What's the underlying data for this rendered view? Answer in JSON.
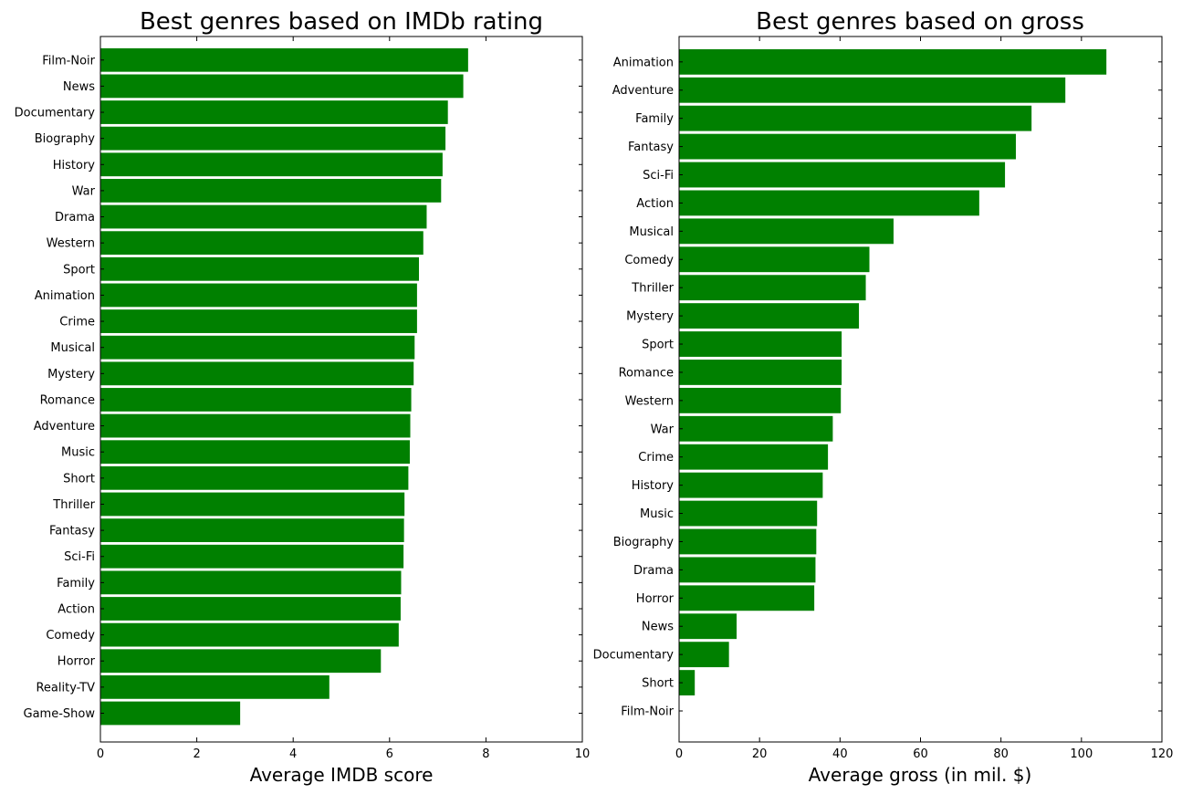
{
  "chart_data": [
    {
      "type": "bar",
      "orientation": "horizontal",
      "title": "Best genres based on IMDb rating",
      "xlabel": "Average IMDB score",
      "ylabel": "",
      "xlim": [
        0,
        10
      ],
      "xticks": [
        0,
        2,
        4,
        6,
        8,
        10
      ],
      "bar_color": "#008000",
      "grid": false,
      "categories": [
        "Film-Noir",
        "News",
        "Documentary",
        "Biography",
        "History",
        "War",
        "Drama",
        "Western",
        "Sport",
        "Animation",
        "Crime",
        "Musical",
        "Mystery",
        "Romance",
        "Adventure",
        "Music",
        "Short",
        "Thriller",
        "Fantasy",
        "Sci-Fi",
        "Family",
        "Action",
        "Comedy",
        "Horror",
        "Reality-TV",
        "Game-Show"
      ],
      "values": [
        7.63,
        7.53,
        7.21,
        7.16,
        7.1,
        7.07,
        6.77,
        6.7,
        6.61,
        6.57,
        6.57,
        6.52,
        6.5,
        6.45,
        6.43,
        6.42,
        6.39,
        6.31,
        6.3,
        6.29,
        6.24,
        6.23,
        6.19,
        5.82,
        4.75,
        2.9
      ]
    },
    {
      "type": "bar",
      "orientation": "horizontal",
      "title": "Best genres based on gross",
      "xlabel": "Average gross (in mil. $)",
      "ylabel": "",
      "xlim": [
        0,
        120
      ],
      "xticks": [
        0,
        20,
        40,
        60,
        80,
        100,
        120
      ],
      "bar_color": "#008000",
      "grid": false,
      "categories": [
        "Animation",
        "Adventure",
        "Family",
        "Fantasy",
        "Sci-Fi",
        "Action",
        "Musical",
        "Comedy",
        "Thriller",
        "Mystery",
        "Sport",
        "Romance",
        "Western",
        "War",
        "Crime",
        "History",
        "Music",
        "Biography",
        "Drama",
        "Horror",
        "News",
        "Documentary",
        "Short",
        "Film-Noir"
      ],
      "values": [
        106.2,
        96.0,
        87.6,
        83.7,
        81.0,
        74.6,
        53.3,
        47.3,
        46.4,
        44.7,
        40.4,
        40.4,
        40.2,
        38.2,
        37.0,
        35.7,
        34.3,
        34.1,
        33.9,
        33.6,
        14.3,
        12.4,
        3.9,
        0
      ]
    }
  ]
}
